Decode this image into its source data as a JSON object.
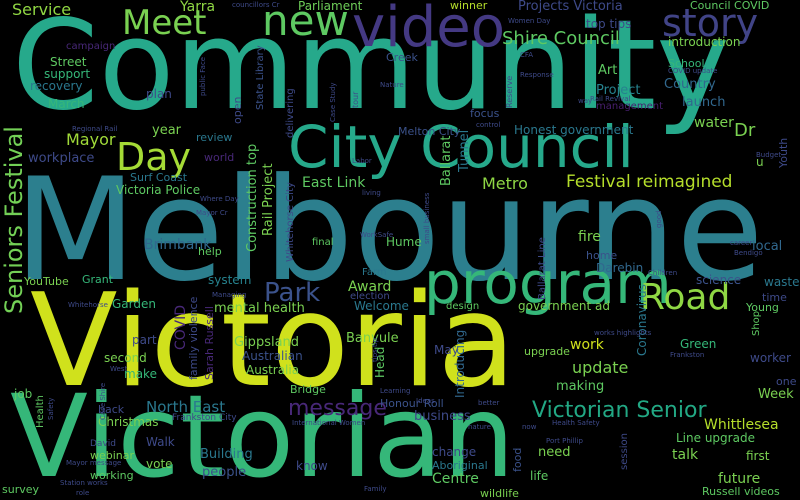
{
  "colors": {
    "background": "#000000",
    "palette": [
      "#440154",
      "#482878",
      "#3e4a89",
      "#31688e",
      "#26828e",
      "#1f9e89",
      "#35b779",
      "#6ece58",
      "#b5de2b",
      "#fde725"
    ]
  },
  "words": [
    {
      "text": "Community",
      "color": "#26a98b"
    },
    {
      "text": "Melbourne",
      "color": "#2c7f8e"
    },
    {
      "text": "Victoria",
      "color": "#d0e11c"
    },
    {
      "text": "Victorian",
      "color": "#35b779"
    },
    {
      "text": "City Council",
      "color": "#26a98b"
    },
    {
      "text": "program",
      "color": "#35b779"
    },
    {
      "text": "new",
      "color": "#5ec962"
    },
    {
      "text": "video",
      "color": "#443983"
    },
    {
      "text": "story",
      "color": "#414487"
    },
    {
      "text": "Meet",
      "color": "#7ad151"
    },
    {
      "text": "Day",
      "color": "#a5db36"
    },
    {
      "text": "Road",
      "color": "#8fd744"
    },
    {
      "text": "Victorian Senior",
      "color": "#22a884"
    },
    {
      "text": "Festival reimagined",
      "color": "#b5de2b"
    },
    {
      "text": "Shire Council",
      "color": "#5ec962"
    },
    {
      "text": "Seniors Festival",
      "color": "#73d056"
    },
    {
      "text": "Park",
      "color": "#3b528b"
    },
    {
      "text": "message",
      "color": "#482878"
    },
    {
      "text": "Service",
      "color": "#90d743"
    },
    {
      "text": "Yarra",
      "color": "#8fd744"
    },
    {
      "text": "Parliament",
      "color": "#6ece58"
    },
    {
      "text": "winner",
      "color": "#b5de2b"
    },
    {
      "text": "Projects Victoria",
      "color": "#3e4a89"
    },
    {
      "text": "Council COVID",
      "color": "#5ec962"
    },
    {
      "text": "top tips",
      "color": "#3e4a89"
    },
    {
      "text": "introduction",
      "color": "#7ad151"
    },
    {
      "text": "Street",
      "color": "#5ec962"
    },
    {
      "text": "support",
      "color": "#35b779"
    },
    {
      "text": "recovery",
      "color": "#2a788e"
    },
    {
      "text": "campaign",
      "color": "#482878"
    },
    {
      "text": "March",
      "color": "#35b779"
    },
    {
      "text": "plan",
      "color": "#3e4a89"
    },
    {
      "text": "Creek",
      "color": "#3b528b"
    },
    {
      "text": "Art",
      "color": "#5ec962"
    },
    {
      "text": "Project",
      "color": "#26828e"
    },
    {
      "text": "Country",
      "color": "#31688e"
    },
    {
      "text": "School",
      "color": "#35b779"
    },
    {
      "text": "launch",
      "color": "#31688e"
    },
    {
      "text": "management",
      "color": "#481f70"
    },
    {
      "text": "water",
      "color": "#7ad151"
    },
    {
      "text": "Dr",
      "color": "#7ad151"
    },
    {
      "text": "Honest government",
      "color": "#2a788e"
    },
    {
      "text": "Melton City",
      "color": "#3b528b"
    },
    {
      "text": "focus",
      "color": "#3b528b"
    },
    {
      "text": "Tunnel",
      "color": "#2a788e"
    },
    {
      "text": "Metro",
      "color": "#5ec962"
    },
    {
      "text": "Ballarat",
      "color": "#8fd744"
    },
    {
      "text": "year",
      "color": "#7ad151"
    },
    {
      "text": "review",
      "color": "#2a788e"
    },
    {
      "text": "Mayor",
      "color": "#a0da39"
    },
    {
      "text": "workplace",
      "color": "#3e4a89"
    },
    {
      "text": "Surf Coast",
      "color": "#2a788e"
    },
    {
      "text": "Victoria Police",
      "color": "#5ec962"
    },
    {
      "text": "East Link",
      "color": "#5ec962"
    },
    {
      "text": "Brimbank",
      "color": "#31688e"
    },
    {
      "text": "fire",
      "color": "#7ad151"
    },
    {
      "text": "local",
      "color": "#31688e"
    },
    {
      "text": "Darebin",
      "color": "#31688e"
    },
    {
      "text": "home",
      "color": "#3b528b"
    },
    {
      "text": "waste",
      "color": "#2a788e"
    },
    {
      "text": "Hume",
      "color": "#5ec962"
    },
    {
      "text": "YouTube",
      "color": "#7ad151"
    },
    {
      "text": "Grant",
      "color": "#35b779"
    },
    {
      "text": "system",
      "color": "#26828e"
    },
    {
      "text": "Award",
      "color": "#7ad151"
    },
    {
      "text": "Welcome",
      "color": "#2a788e"
    },
    {
      "text": "Garden",
      "color": "#35b779"
    },
    {
      "text": "mental health",
      "color": "#7ad151"
    },
    {
      "text": "government ad",
      "color": "#7ad151"
    },
    {
      "text": "science",
      "color": "#3b528b"
    },
    {
      "text": "time",
      "color": "#3e4a89"
    },
    {
      "text": "Young",
      "color": "#5ec962"
    },
    {
      "text": "part",
      "color": "#3e4a89"
    },
    {
      "text": "Gippsland",
      "color": "#7ad151"
    },
    {
      "text": "Australian",
      "color": "#3b528b"
    },
    {
      "text": "Australia",
      "color": "#7ad151"
    },
    {
      "text": "Banyule",
      "color": "#7ad151"
    },
    {
      "text": "May",
      "color": "#3e4a89"
    },
    {
      "text": "work",
      "color": "#d0e11c"
    },
    {
      "text": "update",
      "color": "#7ad151"
    },
    {
      "text": "Green",
      "color": "#35b779"
    },
    {
      "text": "worker",
      "color": "#3e4a89"
    },
    {
      "text": "second",
      "color": "#7ad151"
    },
    {
      "text": "make",
      "color": "#35b779"
    },
    {
      "text": "upgrade",
      "color": "#7ad151"
    },
    {
      "text": "making",
      "color": "#5ec962"
    },
    {
      "text": "one",
      "color": "#3e4a89"
    },
    {
      "text": "Week",
      "color": "#7ad151"
    },
    {
      "text": "North East",
      "color": "#2a788e"
    },
    {
      "text": "Christmas",
      "color": "#7ad151"
    },
    {
      "text": "Honour Roll",
      "color": "#3b528b"
    },
    {
      "text": "business",
      "color": "#3e4a89"
    },
    {
      "text": "job",
      "color": "#5ec962"
    },
    {
      "text": "back",
      "color": "#3e4a89"
    },
    {
      "text": "Walk",
      "color": "#3e4a89"
    },
    {
      "text": "webinar",
      "color": "#7ad151"
    },
    {
      "text": "working",
      "color": "#5ec962"
    },
    {
      "text": "vote",
      "color": "#7ad151"
    },
    {
      "text": "survey",
      "color": "#5ec962"
    },
    {
      "text": "Building",
      "color": "#2a788e"
    },
    {
      "text": "people",
      "color": "#3b528b"
    },
    {
      "text": "know",
      "color": "#3e4a89"
    },
    {
      "text": "change",
      "color": "#3e4a89"
    },
    {
      "text": "Aboriginal",
      "color": "#2a788e"
    },
    {
      "text": "Centre",
      "color": "#5ec962"
    },
    {
      "text": "need",
      "color": "#7ad151"
    },
    {
      "text": "life",
      "color": "#5ec962"
    },
    {
      "text": "talk",
      "color": "#7ad151"
    },
    {
      "text": "first",
      "color": "#7ad151"
    },
    {
      "text": "future",
      "color": "#7ad151"
    },
    {
      "text": "Line upgrade",
      "color": "#5ec962"
    },
    {
      "text": "Whittlesea",
      "color": "#b5de2b"
    },
    {
      "text": "Russell videos",
      "color": "#5ec962"
    },
    {
      "text": "wildlife",
      "color": "#7ad151"
    },
    {
      "text": "Construction top",
      "color": "#5ec962"
    },
    {
      "text": "Rail Project",
      "color": "#7ad151"
    },
    {
      "text": "COVID",
      "color": "#482878"
    },
    {
      "text": "Coronavirus",
      "color": "#2a788e"
    },
    {
      "text": "Introducing",
      "color": "#31688e"
    },
    {
      "text": "Head",
      "color": "#5ec962"
    },
    {
      "text": "food",
      "color": "#3b528b"
    },
    {
      "text": "session",
      "color": "#3e4a89"
    },
    {
      "text": "open",
      "color": "#3e4a89"
    },
    {
      "text": "delivering",
      "color": "#3e4a89"
    },
    {
      "text": "State Library",
      "color": "#3b528b"
    },
    {
      "text": "world",
      "color": "#482878"
    },
    {
      "text": "family violence",
      "color": "#3e4a89"
    },
    {
      "text": "Sarah Russell",
      "color": "#482878"
    },
    {
      "text": "Whitehorse City",
      "color": "#3e4a89"
    },
    {
      "text": "Ballarat Line",
      "color": "#3e4a89"
    },
    {
      "text": "Youth",
      "color": "#3e4a89"
    },
    {
      "text": "u",
      "color": "#7ad151"
    },
    {
      "text": "help",
      "color": "#5ec962"
    },
    {
      "text": "final",
      "color": "#5ec962"
    },
    {
      "text": "Bridge",
      "color": "#5ec962"
    },
    {
      "text": "design",
      "color": "#5ec962"
    },
    {
      "text": "election",
      "color": "#3e4a89"
    },
    {
      "text": "Farm",
      "color": "#2a788e"
    },
    {
      "text": "Shop",
      "color": "#5ec962"
    },
    {
      "text": "Health",
      "color": "#5ec962"
    },
    {
      "text": "Rail Revival",
      "color": "#3e4a89"
    },
    {
      "text": "Regional Rail",
      "color": "#3e4a89"
    },
    {
      "text": "Frankston City",
      "color": "#3e4a89"
    },
    {
      "text": "David",
      "color": "#3e4a89"
    },
    {
      "text": "Family",
      "color": "#3e4a89"
    },
    {
      "text": "Reserve",
      "color": "#3e4a89"
    },
    {
      "text": "tour",
      "color": "#3e4a89"
    },
    {
      "text": "Labor",
      "color": "#3e4a89"
    },
    {
      "text": "councillors Cr",
      "color": "#3e4a89"
    },
    {
      "text": "Women Day",
      "color": "#3e4a89"
    },
    {
      "text": "CFA",
      "color": "#3e4a89"
    },
    {
      "text": "COVID update",
      "color": "#3e4a89"
    },
    {
      "text": "Response",
      "color": "#3e4a89"
    },
    {
      "text": "Budget",
      "color": "#3e4a89"
    },
    {
      "text": "Mayor Cr",
      "color": "#3e4a89"
    },
    {
      "text": "Whitehorse",
      "color": "#3e4a89"
    },
    {
      "text": "Managing",
      "color": "#3e4a89"
    },
    {
      "text": "International Women",
      "color": "#3e4a89"
    },
    {
      "text": "Learning",
      "color": "#3e4a89"
    },
    {
      "text": "Port Phillip",
      "color": "#3e4a89"
    },
    {
      "text": "Health Safety",
      "color": "#3e4a89"
    },
    {
      "text": "nature",
      "color": "#3e4a89"
    },
    {
      "text": "better",
      "color": "#3e4a89"
    },
    {
      "text": "Station works",
      "color": "#3e4a89"
    },
    {
      "text": "Mayor message",
      "color": "#3e4a89"
    },
    {
      "text": "role",
      "color": "#3e4a89"
    },
    {
      "text": "now",
      "color": "#3e4a89"
    },
    {
      "text": "Frankston",
      "color": "#3e4a89"
    },
    {
      "text": "works highlights",
      "color": "#3e4a89"
    },
    {
      "text": "Children",
      "color": "#3e4a89"
    },
    {
      "text": "Bendigo",
      "color": "#3e4a89"
    },
    {
      "text": "career",
      "color": "#3e4a89"
    },
    {
      "text": "good",
      "color": "#3e4a89"
    },
    {
      "text": "WorkSafe",
      "color": "#3e4a89"
    },
    {
      "text": "small business",
      "color": "#3e4a89"
    },
    {
      "text": "living",
      "color": "#3e4a89"
    },
    {
      "text": "Case Study",
      "color": "#3e4a89"
    },
    {
      "text": "Nature",
      "color": "#3e4a89"
    },
    {
      "text": "control",
      "color": "#3e4a89"
    },
    {
      "text": "way",
      "color": "#3e4a89"
    },
    {
      "text": "public Face",
      "color": "#3e4a89"
    },
    {
      "text": "tips tip",
      "color": "#3e4a89"
    },
    {
      "text": "West",
      "color": "#3e4a89"
    },
    {
      "text": "Case Shire",
      "color": "#3e4a89"
    },
    {
      "text": "Safety",
      "color": "#3e4a89"
    },
    {
      "text": "Ideas",
      "color": "#3e4a89"
    },
    {
      "text": "Where Day",
      "color": "#3e4a89"
    }
  ]
}
